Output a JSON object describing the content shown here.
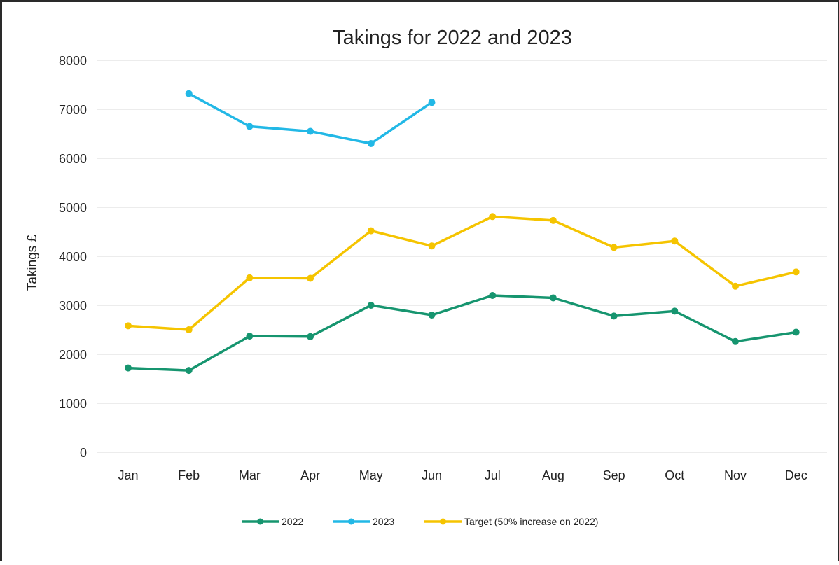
{
  "chart_data": {
    "type": "line",
    "title": "Takings for 2022 and 2023",
    "xlabel": "",
    "ylabel": "Takings £",
    "categories": [
      "Jan",
      "Feb",
      "Mar",
      "Apr",
      "May",
      "Jun",
      "Jul",
      "Aug",
      "Sep",
      "Oct",
      "Nov",
      "Dec"
    ],
    "ylim": [
      0,
      8000
    ],
    "yticks": [
      0,
      1000,
      2000,
      3000,
      4000,
      5000,
      6000,
      7000,
      8000
    ],
    "grid": "horizontal",
    "legend_position": "bottom",
    "series": [
      {
        "name": "2022",
        "color": "#16956f",
        "values": [
          1720,
          1670,
          2370,
          2360,
          3000,
          2800,
          3200,
          3150,
          2780,
          2880,
          2260,
          2450
        ]
      },
      {
        "name": "2023",
        "color": "#22b8e6",
        "values": [
          null,
          7320,
          6650,
          6550,
          6300,
          7140,
          null,
          null,
          null,
          null,
          null,
          null
        ]
      },
      {
        "name": "Target (50% increase on 2022)",
        "color": "#f5c400",
        "values": [
          2580,
          2500,
          3560,
          3550,
          4520,
          4210,
          4810,
          4730,
          4180,
          4310,
          3390,
          3680
        ]
      }
    ]
  }
}
